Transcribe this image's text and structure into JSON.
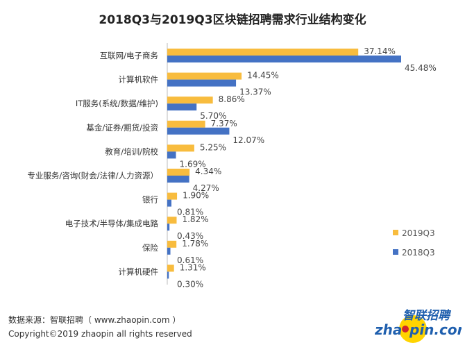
{
  "chart_data": {
    "type": "bar",
    "orientation": "horizontal",
    "title": "2018Q3与2019Q3区块链招聘需求行业结构变化",
    "categories": [
      "互联网/电子商务",
      "计算机软件",
      "IT服务(系统/数据/维护)",
      "基金/证券/期货/投资",
      "教育/培训/院校",
      "专业服务/咨询(财会/法律/人力资源）",
      "银行",
      "电子技术/半导体/集成电路",
      "保险",
      "计算机硬件"
    ],
    "series": [
      {
        "name": "2019Q3",
        "color": "#F8BC3E",
        "values": [
          37.14,
          14.45,
          8.86,
          7.37,
          5.25,
          4.34,
          1.9,
          1.82,
          1.78,
          1.31
        ],
        "labels": [
          "37.14%",
          "14.45%",
          "8.86%",
          "7.37%",
          "5.25%",
          "4.34%",
          "1.90%",
          "1.82%",
          "1.78%",
          "1.31%"
        ]
      },
      {
        "name": "2018Q3",
        "color": "#4472C4",
        "values": [
          45.48,
          13.37,
          5.7,
          12.07,
          1.69,
          4.27,
          0.81,
          0.43,
          0.61,
          0.3
        ],
        "labels": [
          "45.48%",
          "13.37%",
          "5.70%",
          "12.07%",
          "1.69%",
          "4.27%",
          "0.81%",
          "0.43%",
          "0.61%",
          "0.30%"
        ]
      }
    ],
    "xlim": [
      0,
      46
    ],
    "grid": false,
    "legend_placement": "right"
  },
  "footer": {
    "source": "数据来源：智联招聘（ www.zhaopin.com ）",
    "copyright": "Copyright©2019 zhaopin all rights reserved"
  },
  "logo": {
    "cn": "智联招聘",
    "en": "zhaopin.com"
  }
}
